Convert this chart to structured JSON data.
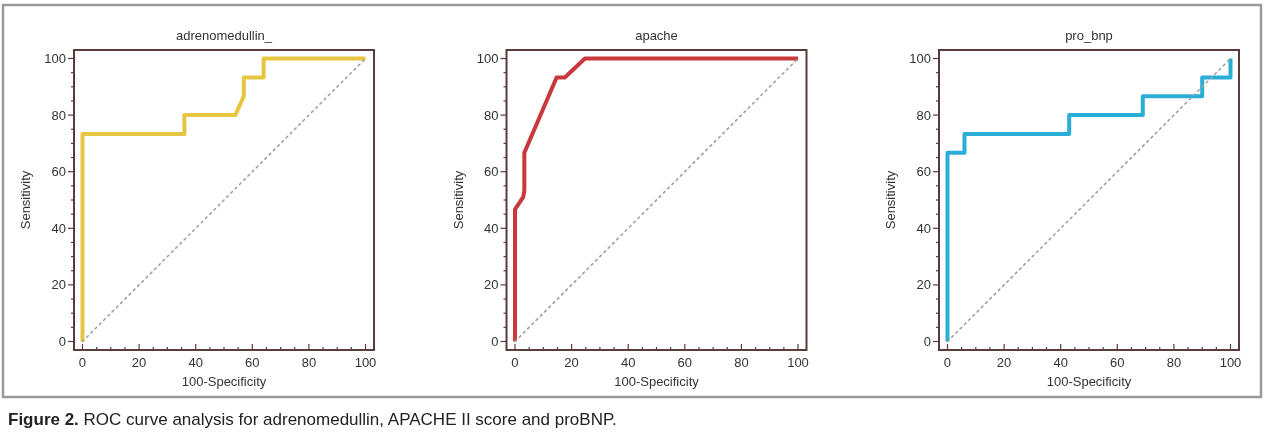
{
  "chart_data": [
    {
      "type": "line",
      "title": "adrenomedullin_",
      "xlabel": "100-Specificity",
      "ylabel": "Sensitivity",
      "xlim": [
        -3,
        103
      ],
      "ylim": [
        -3,
        103
      ],
      "xticks": [
        0,
        {
          "value": 5,
          "label": null
        },
        {
          "value": 10,
          "label": null
        },
        {
          "value": 15,
          "label": null
        },
        20,
        {
          "value": 25,
          "label": null
        },
        {
          "value": 30,
          "label": null
        },
        {
          "value": 35,
          "label": null
        },
        40,
        {
          "value": 45,
          "label": null
        },
        {
          "value": 50,
          "label": null
        },
        {
          "value": 55,
          "label": null
        },
        60,
        {
          "value": 65,
          "label": null
        },
        {
          "value": 70,
          "label": null
        },
        {
          "value": 75,
          "label": null
        },
        80,
        {
          "value": 85,
          "label": null
        },
        {
          "value": 90,
          "label": null
        },
        {
          "value": 95,
          "label": null
        },
        100
      ],
      "yticks": [
        0,
        {
          "value": 5,
          "label": null
        },
        {
          "value": 10,
          "label": null
        },
        {
          "value": 15,
          "label": null
        },
        20,
        {
          "value": 25,
          "label": null
        },
        {
          "value": 30,
          "label": null
        },
        {
          "value": 35,
          "label": null
        },
        40,
        {
          "value": 45,
          "label": null
        },
        {
          "value": 50,
          "label": null
        },
        {
          "value": 55,
          "label": null
        },
        60,
        {
          "value": 65,
          "label": null
        },
        {
          "value": 70,
          "label": null
        },
        {
          "value": 75,
          "label": null
        },
        80,
        {
          "value": 85,
          "label": null
        },
        {
          "value": 90,
          "label": null
        },
        {
          "value": 95,
          "label": null
        },
        100
      ],
      "series": [
        {
          "color": "#e6c640",
          "line_style": "solid",
          "x": [
            0,
            0,
            36,
            36,
            54,
            57,
            57,
            64,
            64,
            100
          ],
          "values": [
            0,
            73.3,
            73.3,
            80,
            80,
            86.7,
            93.3,
            93.3,
            100,
            100
          ]
        },
        {
          "color": "#a0a0a0",
          "line_style": "dotted",
          "x": [
            0,
            100
          ],
          "values": [
            0,
            100
          ]
        }
      ],
      "annotations": [
        "Figure 2. ROC curve analysis for adrenomedullin, APACHE II score and proBNP."
      ]
    },
    {
      "type": "line",
      "title": "apache",
      "xlabel": "100-Specificity",
      "ylabel": "Sensitivity",
      "xlim": [
        -3,
        103
      ],
      "ylim": [
        -3,
        103
      ],
      "xticks": [
        0,
        {
          "value": 5,
          "label": null
        },
        {
          "value": 10,
          "label": null
        },
        {
          "value": 15,
          "label": null
        },
        20,
        {
          "value": 25,
          "label": null
        },
        {
          "value": 30,
          "label": null
        },
        {
          "value": 35,
          "label": null
        },
        40,
        {
          "value": 45,
          "label": null
        },
        {
          "value": 50,
          "label": null
        },
        {
          "value": 55,
          "label": null
        },
        60,
        {
          "value": 65,
          "label": null
        },
        {
          "value": 70,
          "label": null
        },
        {
          "value": 75,
          "label": null
        },
        80,
        {
          "value": 85,
          "label": null
        },
        {
          "value": 90,
          "label": null
        },
        {
          "value": 95,
          "label": null
        },
        100
      ],
      "yticks": [
        0,
        {
          "value": 5,
          "label": null
        },
        {
          "value": 10,
          "label": null
        },
        {
          "value": 15,
          "label": null
        },
        20,
        {
          "value": 25,
          "label": null
        },
        {
          "value": 30,
          "label": null
        },
        {
          "value": 35,
          "label": null
        },
        40,
        {
          "value": 45,
          "label": null
        },
        {
          "value": 50,
          "label": null
        },
        {
          "value": 55,
          "label": null
        },
        60,
        {
          "value": 65,
          "label": null
        },
        {
          "value": 70,
          "label": null
        },
        {
          "value": 75,
          "label": null
        },
        80,
        {
          "value": 85,
          "label": null
        },
        {
          "value": 90,
          "label": null
        },
        {
          "value": 95,
          "label": null
        },
        100
      ],
      "series": [
        {
          "color": "#c8383c",
          "line_style": "solid",
          "x": [
            0,
            0,
            2.9,
            3.3,
            3.3,
            14.7,
            17.6,
            24.7,
            100
          ],
          "values": [
            0,
            46.7,
            51,
            53.3,
            66.7,
            93.3,
            93.3,
            100,
            100
          ]
        },
        {
          "color": "#a0a0a0",
          "line_style": "dotted",
          "x": [
            0,
            100
          ],
          "values": [
            0,
            100
          ]
        }
      ]
    },
    {
      "type": "line",
      "title": "pro_bnp",
      "xlabel": "100-Specificity",
      "ylabel": "Sensitivity",
      "xlim": [
        -3,
        103
      ],
      "ylim": [
        -3,
        103
      ],
      "xticks": [
        0,
        {
          "value": 5,
          "label": null
        },
        {
          "value": 10,
          "label": null
        },
        {
          "value": 15,
          "label": null
        },
        20,
        {
          "value": 25,
          "label": null
        },
        {
          "value": 30,
          "label": null
        },
        {
          "value": 35,
          "label": null
        },
        40,
        {
          "value": 45,
          "label": null
        },
        {
          "value": 50,
          "label": null
        },
        {
          "value": 55,
          "label": null
        },
        60,
        {
          "value": 65,
          "label": null
        },
        {
          "value": 70,
          "label": null
        },
        {
          "value": 75,
          "label": null
        },
        80,
        {
          "value": 85,
          "label": null
        },
        {
          "value": 90,
          "label": null
        },
        {
          "value": 95,
          "label": null
        },
        100
      ],
      "yticks": [
        0,
        {
          "value": 5,
          "label": null
        },
        {
          "value": 10,
          "label": null
        },
        {
          "value": 15,
          "label": null
        },
        20,
        {
          "value": 25,
          "label": null
        },
        {
          "value": 30,
          "label": null
        },
        {
          "value": 35,
          "label": null
        },
        40,
        {
          "value": 45,
          "label": null
        },
        {
          "value": 50,
          "label": null
        },
        {
          "value": 55,
          "label": null
        },
        60,
        {
          "value": 65,
          "label": null
        },
        {
          "value": 70,
          "label": null
        },
        {
          "value": 75,
          "label": null
        },
        80,
        {
          "value": 85,
          "label": null
        },
        {
          "value": 90,
          "label": null
        },
        {
          "value": 95,
          "label": null
        },
        100
      ],
      "series": [
        {
          "color": "#2aaed6",
          "line_style": "solid",
          "x": [
            0,
            0,
            6,
            6,
            43,
            43,
            69,
            69,
            90,
            90,
            100,
            100
          ],
          "values": [
            0,
            66.7,
            66.7,
            73.3,
            73.3,
            80,
            80,
            86.7,
            86.7,
            93.3,
            93.3,
            100
          ]
        },
        {
          "color": "#a0a0a0",
          "line_style": "dotted",
          "x": [
            0,
            100
          ],
          "values": [
            0,
            100
          ]
        }
      ]
    }
  ]
}
